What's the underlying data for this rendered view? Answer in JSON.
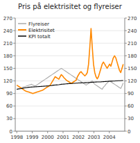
{
  "chart_data": {
    "type": "line",
    "title": "Pris på elektrisitet og flyreiser",
    "x": [
      1998,
      1998.0802,
      1998.1605,
      1998.2407,
      1998.3209,
      1998.4012,
      1998.4814,
      1998.5616,
      1998.6419,
      1998.7221,
      1998.8023,
      1998.8826,
      1998.9628,
      1999.043,
      1999.1233,
      1999.2035,
      1999.2837,
      1999.364,
      1999.4442,
      1999.5244,
      1999.6047,
      1999.6849,
      1999.7651,
      1999.8453,
      1999.9256,
      2000.0058,
      2000.086,
      2000.1663,
      2000.2465,
      2000.3267,
      2000.407,
      2000.4872,
      2000.5674,
      2000.6477,
      2000.7279,
      2000.8081,
      2000.8884,
      2000.9686,
      2001.0488,
      2001.1291,
      2001.2093,
      2001.2895,
      2001.3698,
      2001.45,
      2001.5302,
      2001.6105,
      2001.6907,
      2001.7709,
      2001.8512,
      2001.9314,
      2002.0116,
      2002.0919,
      2002.1721,
      2002.2523,
      2002.3326,
      2002.4128,
      2002.493,
      2002.5733,
      2002.6535,
      2002.7337,
      2002.814,
      2002.8942,
      2002.9744,
      2003.0547,
      2003.1349,
      2003.2151,
      2003.2953,
      2003.3756,
      2003.4558,
      2003.536,
      2003.6163,
      2003.6965,
      2003.7767,
      2003.857,
      2003.9372,
      2004.0174,
      2004.0977,
      2004.1779,
      2004.2581,
      2004.3384,
      2004.4186,
      2004.4988,
      2004.5791,
      2004.6593,
      2004.7395,
      2004.8198,
      2004.9
    ],
    "series": [
      {
        "name": "Flyreiser",
        "color": "#aaaaaa",
        "values": [
          100,
          101,
          102,
          103,
          104,
          105,
          106,
          107,
          108,
          109,
          110,
          111,
          112,
          110,
          109,
          108,
          110,
          112,
          114,
          116,
          118,
          120,
          122,
          124,
          126,
          128,
          130,
          132,
          134,
          136,
          138,
          140,
          142,
          144,
          146,
          148,
          150,
          148,
          146,
          144,
          142,
          140,
          138,
          136,
          134,
          132,
          130,
          128,
          126,
          124,
          122,
          120,
          118,
          116,
          114,
          112,
          110,
          112,
          114,
          116,
          118,
          120,
          115,
          112,
          110,
          108,
          106,
          104,
          102,
          100,
          105,
          108,
          112,
          115,
          118,
          120,
          118,
          116,
          114,
          112,
          110,
          108,
          106,
          104,
          102,
          108,
          115
        ]
      },
      {
        "name": "Elektrisitet",
        "color": "#ff8800",
        "values": [
          110,
          108,
          106,
          104,
          102,
          100,
          98,
          96,
          95,
          94,
          93,
          92,
          91,
          90,
          91,
          92,
          93,
          94,
          95,
          96,
          97,
          98,
          100,
          102,
          104,
          106,
          108,
          110,
          115,
          120,
          125,
          130,
          128,
          126,
          124,
          130,
          135,
          132,
          128,
          125,
          122,
          120,
          118,
          116,
          114,
          116,
          118,
          120,
          122,
          130,
          135,
          140,
          142,
          138,
          135,
          132,
          135,
          140,
          160,
          200,
          245,
          200,
          160,
          140,
          130,
          125,
          130,
          140,
          150,
          160,
          165,
          160,
          155,
          150,
          155,
          160,
          155,
          165,
          175,
          180,
          175,
          165,
          155,
          145,
          140,
          150,
          160
        ]
      },
      {
        "name": "KPI totalt",
        "color": "#000000",
        "values": [
          100,
          100.5,
          101,
          101.5,
          102,
          102.5,
          103,
          103.5,
          104,
          104.5,
          105,
          105.2,
          105.4,
          105.6,
          105.8,
          106,
          106.2,
          106.4,
          106.6,
          106.8,
          107,
          107.2,
          107.4,
          107.6,
          107.8,
          108,
          108.2,
          108.5,
          109,
          109.5,
          110,
          110.2,
          110.4,
          110.6,
          111,
          111.5,
          112,
          112.2,
          112.4,
          112.6,
          113,
          113.2,
          113.4,
          113.6,
          113.8,
          114,
          114.2,
          114.4,
          114.6,
          114.8,
          115,
          115.2,
          115.4,
          115.5,
          115.6,
          115.7,
          115.8,
          116,
          116.2,
          116.4,
          116.6,
          116.8,
          117,
          117.2,
          117.4,
          117.5,
          117.6,
          117.7,
          117.8,
          118,
          118.2,
          118.4,
          118.6,
          118.8,
          119,
          119.2,
          119.4,
          119.5,
          119.6,
          119.8,
          120,
          120.2,
          120.4,
          120.5,
          120.6,
          120.8,
          121
        ]
      }
    ],
    "xlim": [
      1997.9,
      2005
    ],
    "xticks": [
      1998,
      1999,
      2000,
      2001,
      2002,
      2003,
      2004
    ],
    "ylim": [
      0,
      270
    ],
    "yticks": [
      0,
      30,
      60,
      90,
      120,
      150,
      180,
      210,
      240,
      270
    ],
    "y2lim": [
      0,
      270
    ],
    "y2ticks": [
      0,
      30,
      60,
      90,
      120,
      150,
      180,
      210,
      240,
      270
    ],
    "grid": true,
    "legend": "upper-left"
  }
}
